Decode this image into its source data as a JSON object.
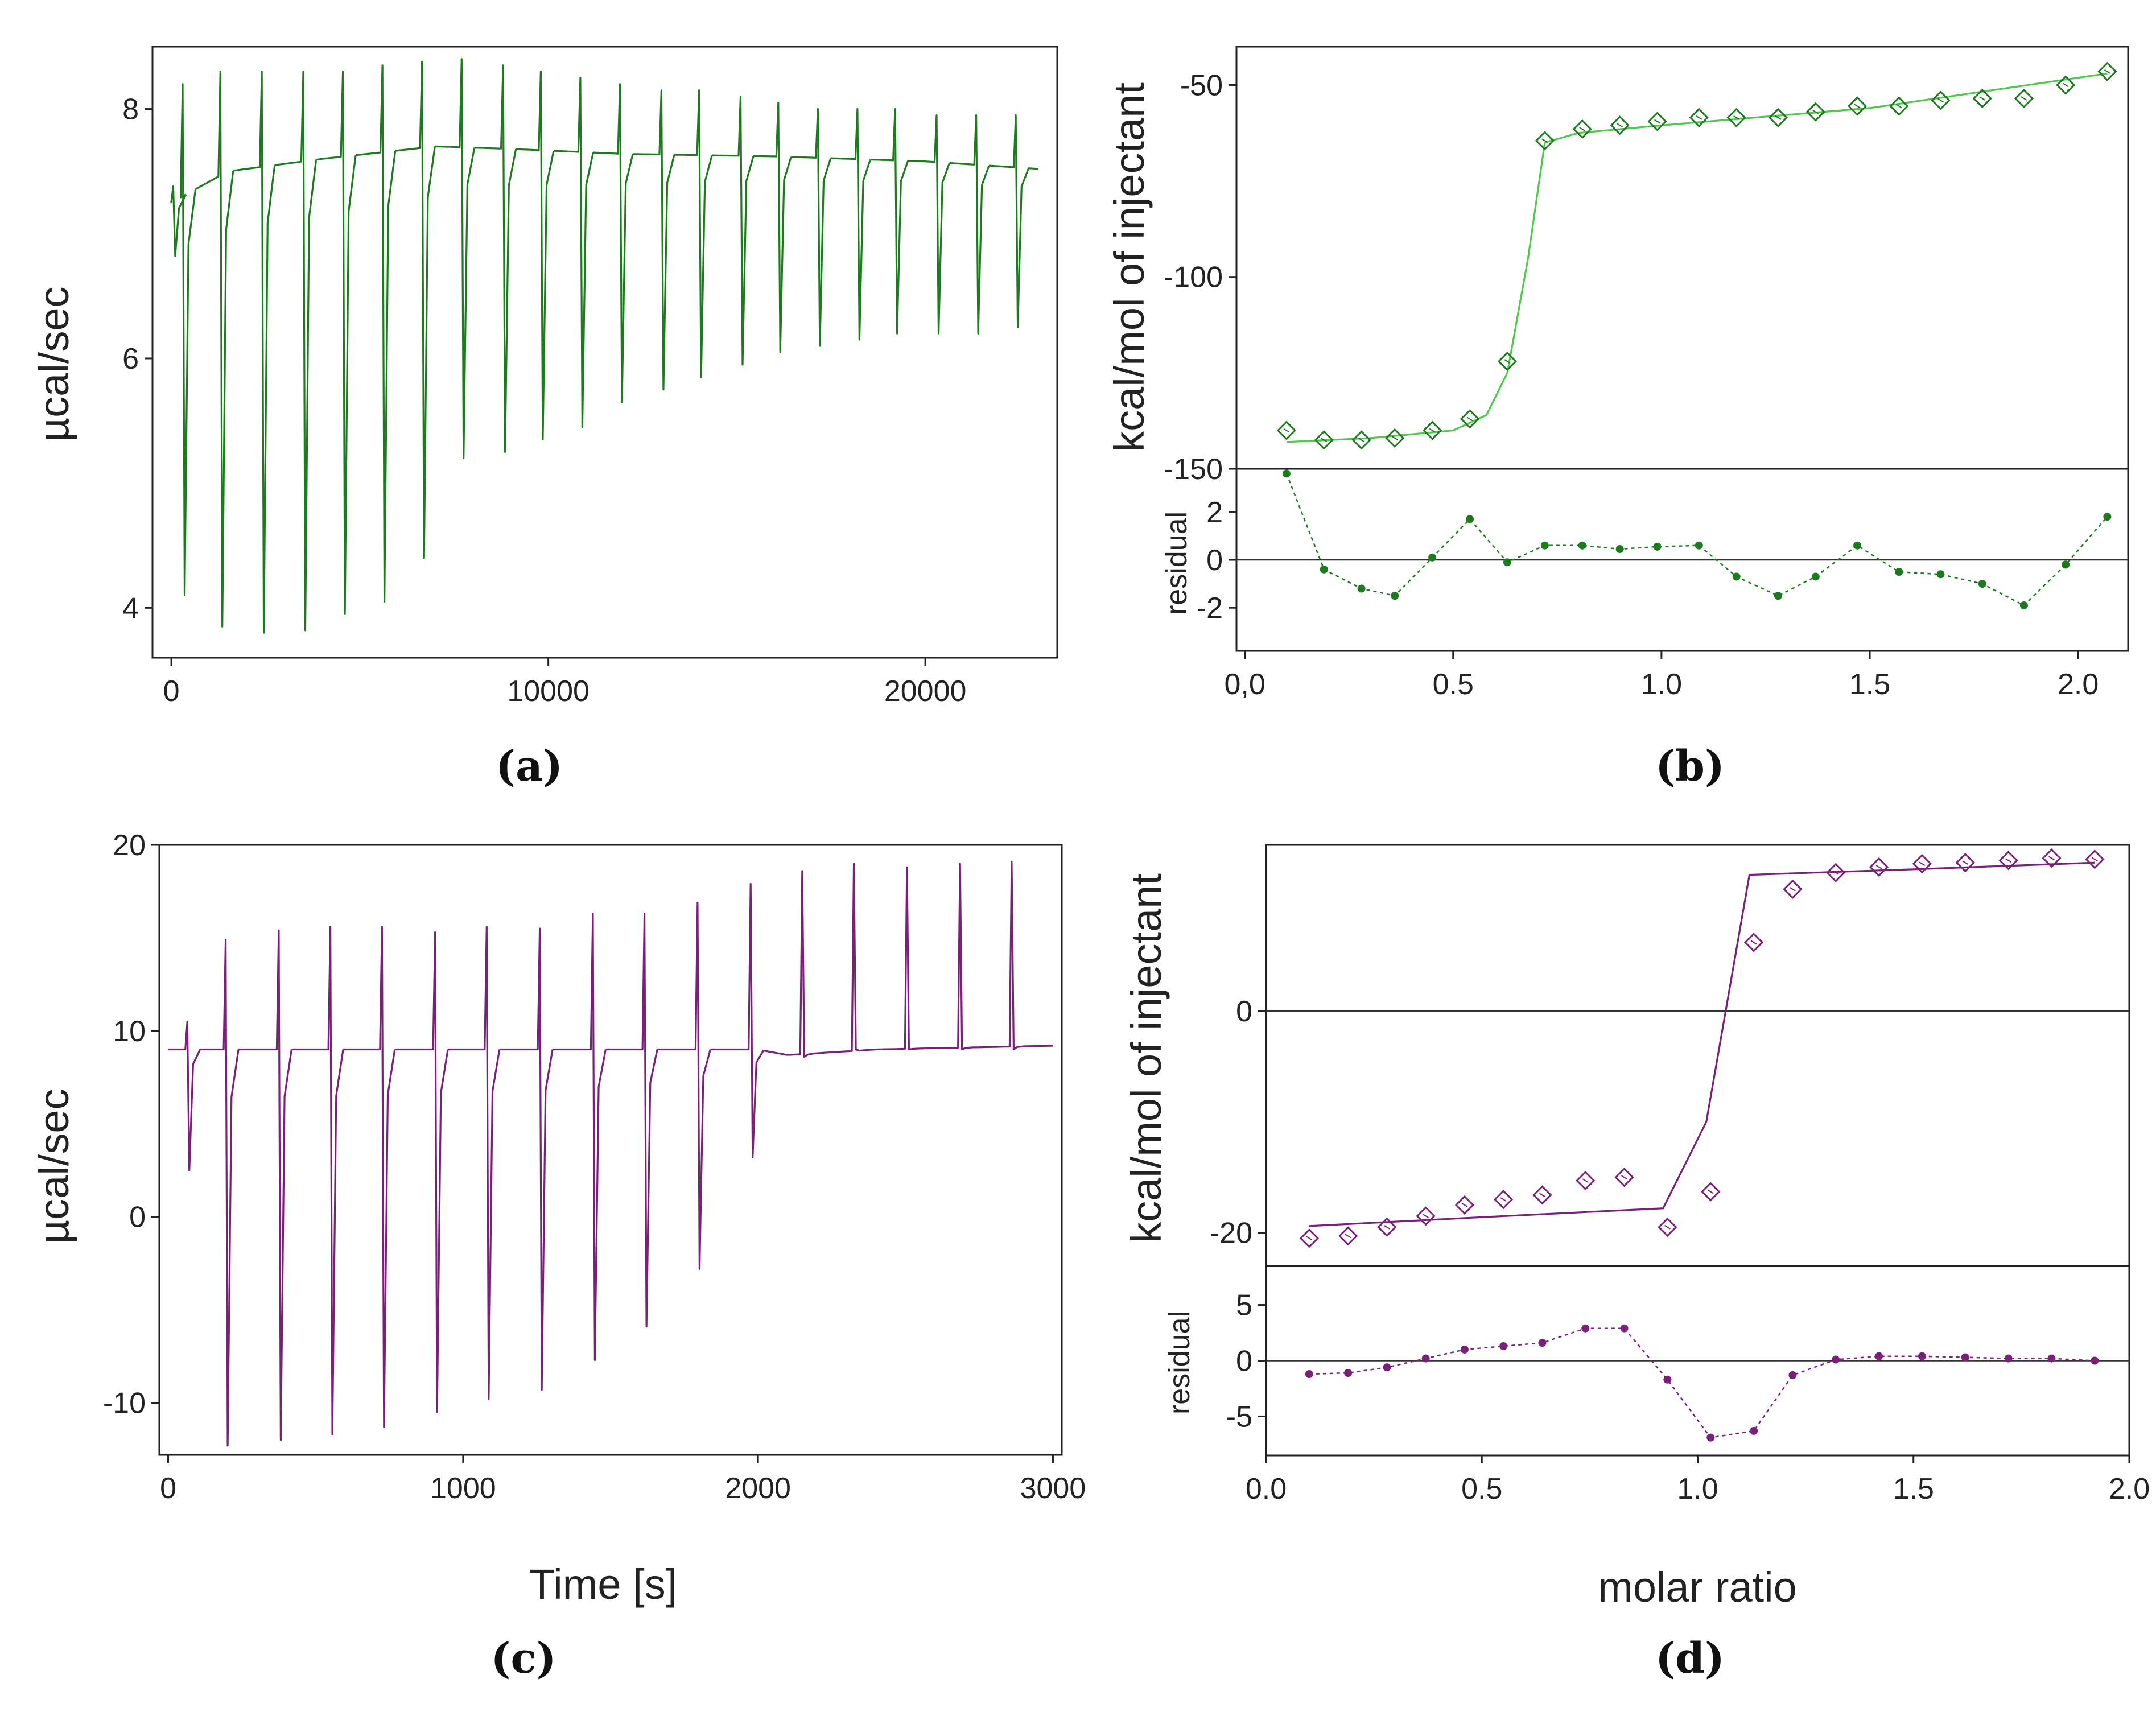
{
  "figure": {
    "panel_labels": [
      "(a)",
      "(b)",
      "(c)",
      "(d)"
    ],
    "colors": {
      "green_dark": "#1e7a1e",
      "green_light": "#4ec94e",
      "purple": "#7a1f7a",
      "axis": "#222222",
      "zero_line": "#333333"
    }
  },
  "chart_data": [
    {
      "id": "a",
      "type": "line",
      "title": "",
      "xlabel": "",
      "ylabel": "µcal/sec",
      "xlim": [
        -500,
        23500
      ],
      "ylim": [
        3.6,
        8.5
      ],
      "xticks": [
        0,
        10000,
        20000
      ],
      "xtick_labels": [
        "0",
        "10000",
        "20000"
      ],
      "yticks": [
        4,
        6,
        8
      ],
      "ytick_labels": [
        "4",
        "6",
        "8"
      ],
      "baseline": [
        [
          0,
          7.25
        ],
        [
          1500,
          7.5
        ],
        [
          4000,
          7.6
        ],
        [
          7000,
          7.7
        ],
        [
          9000,
          7.68
        ],
        [
          12000,
          7.64
        ],
        [
          16000,
          7.62
        ],
        [
          20000,
          7.58
        ],
        [
          23000,
          7.52
        ]
      ],
      "injections": [
        {
          "t": 50,
          "up": 7.38,
          "down": 6.82
        },
        {
          "t": 300,
          "up": 8.2,
          "down": 4.1
        },
        {
          "t": 1300,
          "up": 8.3,
          "down": 3.85
        },
        {
          "t": 2400,
          "up": 8.3,
          "down": 3.8
        },
        {
          "t": 3500,
          "up": 8.3,
          "down": 3.82
        },
        {
          "t": 4550,
          "up": 8.3,
          "down": 3.95
        },
        {
          "t": 5600,
          "up": 8.35,
          "down": 4.05
        },
        {
          "t": 6650,
          "up": 8.38,
          "down": 4.4
        },
        {
          "t": 7700,
          "up": 8.4,
          "down": 5.2
        },
        {
          "t": 8800,
          "up": 8.35,
          "down": 5.25
        },
        {
          "t": 9800,
          "up": 8.3,
          "down": 5.35
        },
        {
          "t": 10850,
          "up": 8.25,
          "down": 5.45
        },
        {
          "t": 11900,
          "up": 8.2,
          "down": 5.65
        },
        {
          "t": 13000,
          "up": 8.15,
          "down": 5.75
        },
        {
          "t": 14000,
          "up": 8.15,
          "down": 5.85
        },
        {
          "t": 15100,
          "up": 8.1,
          "down": 5.95
        },
        {
          "t": 16100,
          "up": 8.05,
          "down": 6.05
        },
        {
          "t": 17150,
          "up": 8.0,
          "down": 6.1
        },
        {
          "t": 18200,
          "up": 8.0,
          "down": 6.15
        },
        {
          "t": 19200,
          "up": 8.0,
          "down": 6.2
        },
        {
          "t": 20300,
          "up": 7.95,
          "down": 6.2
        },
        {
          "t": 21350,
          "up": 7.95,
          "down": 6.2
        },
        {
          "t": 22400,
          "up": 7.95,
          "down": 6.25
        }
      ]
    },
    {
      "id": "b",
      "type": "scatter",
      "title": "",
      "xlabel": "",
      "ylabel": "kcal/mol of injectant",
      "xlim": [
        -0.02,
        2.12
      ],
      "ylim": [
        -150,
        -40
      ],
      "yticks": [
        -50,
        -100,
        -150
      ],
      "ytick_labels": [
        "-50",
        "-100",
        "-150"
      ],
      "points": [
        [
          0.1,
          -140
        ],
        [
          0.19,
          -142.5
        ],
        [
          0.28,
          -142.5
        ],
        [
          0.36,
          -142
        ],
        [
          0.45,
          -140
        ],
        [
          0.54,
          -137
        ],
        [
          0.63,
          -122
        ],
        [
          0.72,
          -64.5
        ],
        [
          0.81,
          -61.5
        ],
        [
          0.9,
          -60.5
        ],
        [
          0.99,
          -59.5
        ],
        [
          1.09,
          -58.5
        ],
        [
          1.18,
          -58.5
        ],
        [
          1.28,
          -58.5
        ],
        [
          1.37,
          -57
        ],
        [
          1.47,
          -55.5
        ],
        [
          1.57,
          -55.5
        ],
        [
          1.67,
          -54
        ],
        [
          1.77,
          -53.5
        ],
        [
          1.87,
          -53.5
        ],
        [
          1.97,
          -50
        ],
        [
          2.07,
          -46.5
        ]
      ],
      "fit": [
        [
          0.1,
          -143
        ],
        [
          0.3,
          -142
        ],
        [
          0.5,
          -140
        ],
        [
          0.58,
          -136
        ],
        [
          0.63,
          -125
        ],
        [
          0.68,
          -95
        ],
        [
          0.72,
          -65
        ],
        [
          0.8,
          -62.5
        ],
        [
          1.0,
          -60.5
        ],
        [
          1.5,
          -56
        ],
        [
          2.07,
          -47
        ]
      ],
      "residual": {
        "ylabel": "residual",
        "ylim": [
          -3.8,
          3.8
        ],
        "yticks": [
          2,
          0,
          -2
        ],
        "ytick_labels": [
          "2",
          "0",
          "-2"
        ],
        "values": [
          [
            0.1,
            3.6
          ],
          [
            0.19,
            -0.4
          ],
          [
            0.28,
            -1.2
          ],
          [
            0.36,
            -1.5
          ],
          [
            0.45,
            0.1
          ],
          [
            0.54,
            1.7
          ],
          [
            0.63,
            -0.1
          ],
          [
            0.72,
            0.6
          ],
          [
            0.81,
            0.6
          ],
          [
            0.9,
            0.45
          ],
          [
            0.99,
            0.55
          ],
          [
            1.09,
            0.6
          ],
          [
            1.18,
            -0.7
          ],
          [
            1.28,
            -1.5
          ],
          [
            1.37,
            -0.7
          ],
          [
            1.47,
            0.6
          ],
          [
            1.57,
            -0.5
          ],
          [
            1.67,
            -0.6
          ],
          [
            1.77,
            -1.0
          ],
          [
            1.87,
            -1.9
          ],
          [
            1.97,
            -0.2
          ],
          [
            2.07,
            1.8
          ]
        ]
      },
      "xticks": [
        0.0,
        0.5,
        1.0,
        1.5,
        2.0
      ],
      "xtick_labels": [
        "0,0",
        "0.5",
        "1.0",
        "1.5",
        "2.0"
      ]
    },
    {
      "id": "c",
      "type": "line",
      "title": "",
      "xlabel": "Time [s]",
      "ylabel": "µcal/sec",
      "xlim": [
        -30,
        3030
      ],
      "ylim": [
        -12.8,
        20
      ],
      "xticks": [
        0,
        1000,
        2000,
        3000
      ],
      "xtick_labels": [
        "0",
        "1000",
        "2000",
        "3000"
      ],
      "yticks": [
        20,
        10,
        0,
        -10
      ],
      "ytick_labels": [
        "20",
        "10",
        "0",
        "-10"
      ],
      "baseline": [
        [
          0,
          9.0
        ],
        [
          100,
          9.0
        ],
        [
          200,
          9.0
        ],
        [
          1500,
          9.0
        ],
        [
          2000,
          9.0
        ],
        [
          2100,
          8.7
        ],
        [
          2400,
          9.0
        ],
        [
          3000,
          9.2
        ]
      ],
      "injections": [
        {
          "t": 65,
          "up": 10.5,
          "down": 2.5
        },
        {
          "t": 195,
          "up": 14.9,
          "down": -12.3
        },
        {
          "t": 375,
          "up": 15.4,
          "down": -12.0
        },
        {
          "t": 550,
          "up": 15.6,
          "down": -11.7
        },
        {
          "t": 725,
          "up": 15.6,
          "down": -11.3
        },
        {
          "t": 905,
          "up": 15.3,
          "down": -10.5
        },
        {
          "t": 1080,
          "up": 15.6,
          "down": -9.8
        },
        {
          "t": 1260,
          "up": 15.5,
          "down": -9.3
        },
        {
          "t": 1440,
          "up": 16.3,
          "down": -7.7
        },
        {
          "t": 1615,
          "up": 16.3,
          "down": -5.9
        },
        {
          "t": 1795,
          "up": 16.9,
          "down": -2.8
        },
        {
          "t": 1975,
          "up": 17.9,
          "down": 3.2
        },
        {
          "t": 2150,
          "up": 18.6,
          "down": 8.6
        },
        {
          "t": 2325,
          "up": 19.0,
          "down": 9.0
        },
        {
          "t": 2505,
          "up": 18.8,
          "down": 9.0
        },
        {
          "t": 2685,
          "up": 19.0,
          "down": 9.0
        },
        {
          "t": 2860,
          "up": 19.1,
          "down": 9.0
        }
      ]
    },
    {
      "id": "d",
      "type": "scatter",
      "title": "",
      "xlabel": "molar ratio",
      "ylabel": "kcal/mol of injectant",
      "xlim": [
        0.0,
        2.0
      ],
      "ylim": [
        -23,
        15
      ],
      "yticks": [
        0,
        -20
      ],
      "ytick_labels": [
        "0",
        "-20"
      ],
      "points": [
        [
          0.1,
          -20.5
        ],
        [
          0.19,
          -20.3
        ],
        [
          0.28,
          -19.5
        ],
        [
          0.37,
          -18.5
        ],
        [
          0.46,
          -17.5
        ],
        [
          0.55,
          -17.0
        ],
        [
          0.64,
          -16.6
        ],
        [
          0.74,
          -15.3
        ],
        [
          0.83,
          -15.0
        ],
        [
          0.93,
          -19.5
        ],
        [
          1.03,
          -16.3
        ],
        [
          1.13,
          6.2
        ],
        [
          1.22,
          11.0
        ],
        [
          1.32,
          12.5
        ],
        [
          1.42,
          13.0
        ],
        [
          1.52,
          13.3
        ],
        [
          1.62,
          13.4
        ],
        [
          1.72,
          13.6
        ],
        [
          1.82,
          13.8
        ],
        [
          1.92,
          13.7
        ]
      ],
      "fit": [
        [
          0.1,
          -19.4
        ],
        [
          0.5,
          -18.6
        ],
        [
          0.92,
          -17.8
        ],
        [
          1.02,
          -10.0
        ],
        [
          1.12,
          12.3
        ],
        [
          1.5,
          12.8
        ],
        [
          1.92,
          13.4
        ]
      ],
      "residual": {
        "ylabel": "residual",
        "ylim": [
          -8.5,
          8.5
        ],
        "yticks": [
          5,
          0,
          -5
        ],
        "ytick_labels": [
          "5",
          "0",
          "-5"
        ],
        "values": [
          [
            0.1,
            -1.2
          ],
          [
            0.19,
            -1.1
          ],
          [
            0.28,
            -0.6
          ],
          [
            0.37,
            0.2
          ],
          [
            0.46,
            1.0
          ],
          [
            0.55,
            1.3
          ],
          [
            0.64,
            1.6
          ],
          [
            0.74,
            2.9
          ],
          [
            0.83,
            2.9
          ],
          [
            0.93,
            -1.7
          ],
          [
            1.03,
            -6.9
          ],
          [
            1.13,
            -6.3
          ],
          [
            1.22,
            -1.3
          ],
          [
            1.32,
            0.1
          ],
          [
            1.42,
            0.4
          ],
          [
            1.52,
            0.4
          ],
          [
            1.62,
            0.3
          ],
          [
            1.72,
            0.2
          ],
          [
            1.82,
            0.2
          ],
          [
            1.92,
            0.0
          ]
        ]
      },
      "xticks": [
        0.0,
        0.5,
        1.0,
        1.5,
        2.0
      ],
      "xtick_labels": [
        "0.0",
        "0.5",
        "1.0",
        "1.5",
        "2.0"
      ]
    }
  ]
}
